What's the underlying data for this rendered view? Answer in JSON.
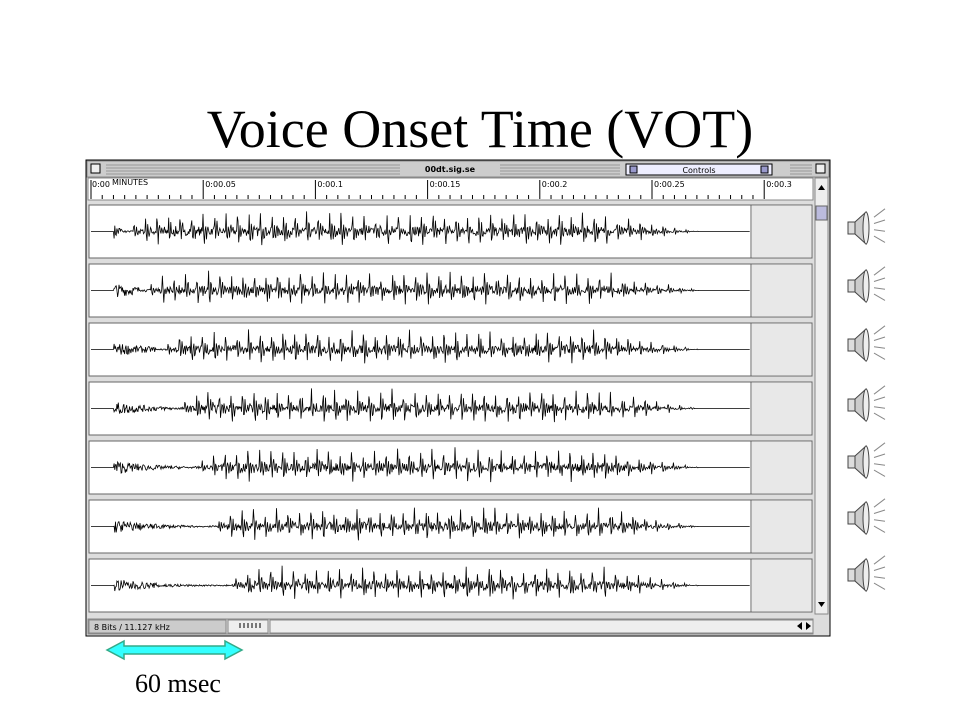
{
  "slide": {
    "title": "Voice Onset Time (VOT)",
    "annotation": "60 msec"
  },
  "window": {
    "title": "00dt.sig.se",
    "controls": "Controls",
    "ruler": {
      "start": "0:00",
      "unit": "MINUTES",
      "labels": [
        "0:00.05",
        "0:00.1",
        "0:00.15",
        "0:00.2",
        "0:00.25",
        "0:00.3"
      ]
    },
    "status": "8 Bits / 11.127 kHz"
  }
}
